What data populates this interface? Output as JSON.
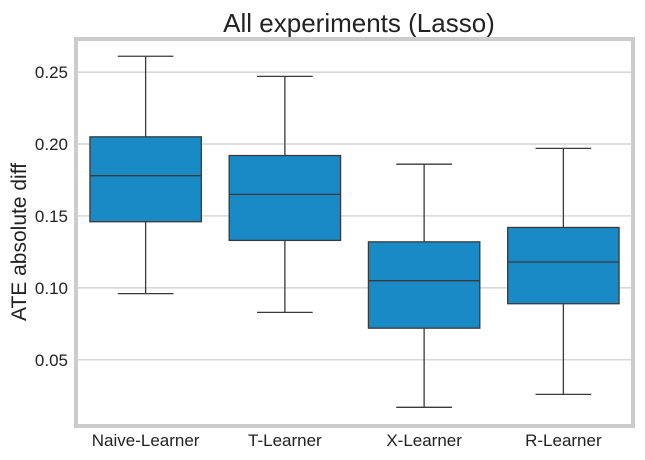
{
  "chart_data": {
    "type": "box",
    "title": "All experiments (Lasso)",
    "xlabel": "",
    "ylabel": "ATE absolute diff",
    "categories": [
      "Naive-Learner",
      "T-Learner",
      "X-Learner",
      "R-Learner"
    ],
    "boxes": [
      {
        "name": "Naive-Learner",
        "whisker_low": 0.096,
        "q1": 0.146,
        "median": 0.178,
        "q3": 0.205,
        "whisker_high": 0.261
      },
      {
        "name": "T-Learner",
        "whisker_low": 0.083,
        "q1": 0.133,
        "median": 0.165,
        "q3": 0.192,
        "whisker_high": 0.247
      },
      {
        "name": "X-Learner",
        "whisker_low": 0.017,
        "q1": 0.072,
        "median": 0.105,
        "q3": 0.132,
        "whisker_high": 0.186
      },
      {
        "name": "R-Learner",
        "whisker_low": 0.026,
        "q1": 0.089,
        "median": 0.118,
        "q3": 0.142,
        "whisker_high": 0.197
      }
    ],
    "yticks": [
      0.05,
      0.1,
      0.15,
      0.2,
      0.25
    ],
    "ytick_labels": [
      "0.05",
      "0.10",
      "0.15",
      "0.20",
      "0.25"
    ],
    "ylim": [
      0.004,
      0.273
    ],
    "grid": "horizontal",
    "colors": {
      "box_fill": "#1a8ac6",
      "line": "#3a3a3a",
      "grid": "#cccccc",
      "frame": "#cccccc"
    }
  }
}
